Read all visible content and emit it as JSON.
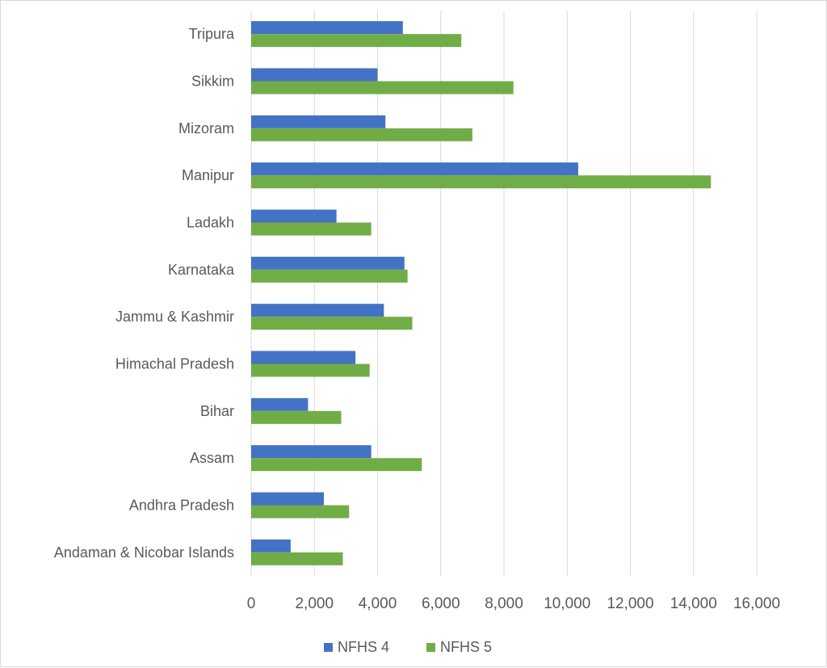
{
  "chart_data": {
    "type": "bar",
    "orientation": "horizontal",
    "categories": [
      "Tripura",
      "Sikkim",
      "Mizoram",
      "Manipur",
      "Ladakh",
      "Karnataka",
      "Jammu & Kashmir",
      "Himachal Pradesh",
      "Bihar",
      "Assam",
      "Andhra Pradesh",
      "Andaman & Nicobar Islands"
    ],
    "series": [
      {
        "name": "NFHS 4",
        "color": "#4472c4",
        "values": [
          4800,
          4000,
          4250,
          10350,
          2700,
          4850,
          4200,
          3300,
          1800,
          3800,
          2300,
          1250
        ]
      },
      {
        "name": "NFHS 5",
        "color": "#70ad47",
        "values": [
          6650,
          8300,
          7000,
          14550,
          3800,
          4950,
          5100,
          3750,
          2850,
          5400,
          3100,
          2900
        ]
      }
    ],
    "x_ticks": [
      "0",
      "2,000",
      "4,000",
      "6,000",
      "8,000",
      "10,000",
      "12,000",
      "14,000",
      "16,000"
    ],
    "xlim": [
      0,
      16000
    ],
    "grid": true,
    "legend": "bottom"
  }
}
